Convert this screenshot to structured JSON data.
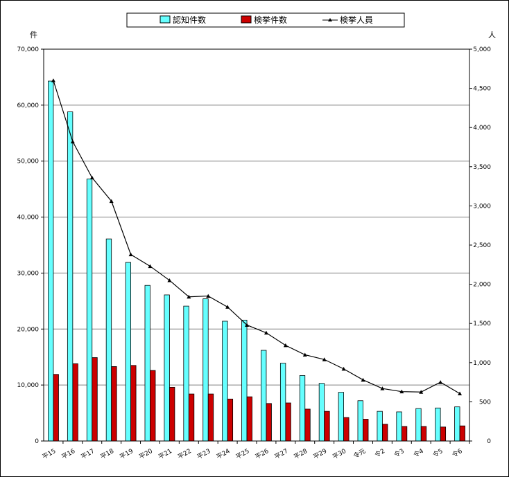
{
  "chart_data": {
    "type": "bar",
    "categories": [
      "平15",
      "平16",
      "平17",
      "平18",
      "平19",
      "平20",
      "平21",
      "平22",
      "平23",
      "平24",
      "平25",
      "平26",
      "平27",
      "平28",
      "平29",
      "平30",
      "令元",
      "令2",
      "令3",
      "令4",
      "令5",
      "令6"
    ],
    "series": [
      {
        "name": "認知件数",
        "axis": "left",
        "kind": "bar",
        "color": "#66FFFF",
        "values": [
          64300,
          58800,
          46800,
          36100,
          31900,
          27800,
          26100,
          24100,
          25400,
          21400,
          21600,
          16200,
          13900,
          11700,
          10300,
          8700,
          7200,
          5300,
          5200,
          5800,
          5900,
          6100
        ]
      },
      {
        "name": "検挙件数",
        "axis": "left",
        "kind": "bar",
        "color": "#CC0000",
        "values": [
          11900,
          13800,
          14900,
          13300,
          13500,
          12600,
          9600,
          8400,
          8400,
          7500,
          7900,
          6700,
          6800,
          5700,
          5300,
          4200,
          3900,
          3000,
          2600,
          2600,
          2500,
          2700
        ]
      },
      {
        "name": "検挙人員",
        "axis": "right",
        "kind": "line",
        "color": "#000000",
        "values": [
          4600,
          3820,
          3360,
          3060,
          2380,
          2230,
          2050,
          1840,
          1850,
          1710,
          1480,
          1380,
          1220,
          1100,
          1040,
          920,
          780,
          670,
          630,
          625,
          750,
          605
        ]
      }
    ],
    "y_left": {
      "unit": "件",
      "min": 0,
      "max": 70000,
      "ticks": [
        "0",
        "10,000",
        "20,000",
        "30,000",
        "40,000",
        "50,000",
        "60,000",
        "70,000"
      ]
    },
    "y_right": {
      "unit": "人",
      "min": 0,
      "max": 5000,
      "ticks": [
        "0",
        "500",
        "1,000",
        "1,500",
        "2,000",
        "2,500",
        "3,000",
        "3,500",
        "4,000",
        "4,500",
        "5,000"
      ]
    },
    "grid": true,
    "legend_position": "top-center"
  }
}
